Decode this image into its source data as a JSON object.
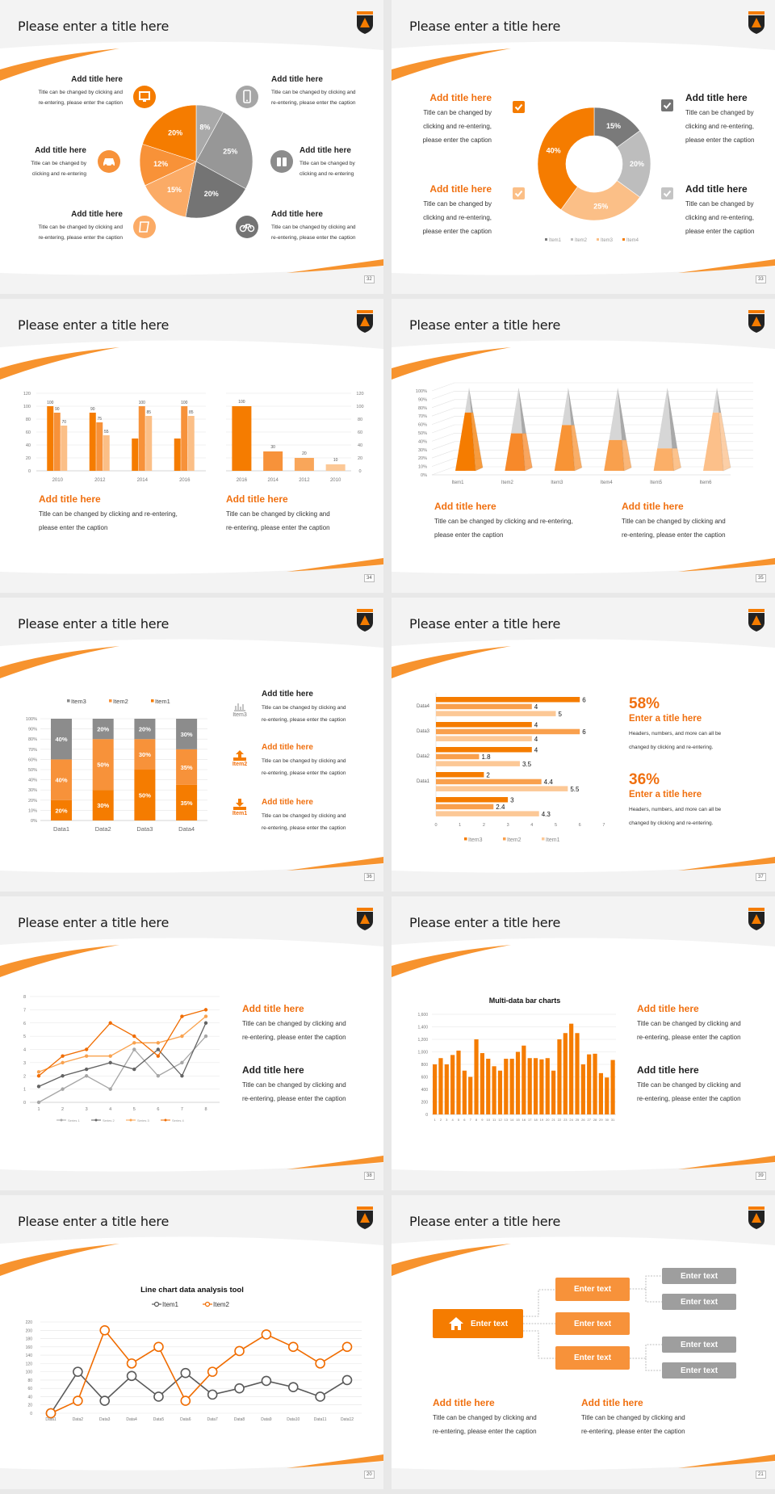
{
  "colors": {
    "accent": "#f57c00",
    "accent_mid": "#f7923a",
    "accent_light": "#fbbf87",
    "gray_dark": "#747474",
    "gray": "#a6a6a6"
  },
  "slides": [
    {
      "title": "Please enter a title here",
      "page": "32",
      "icons": [
        "monitor-icon",
        "phone-icon",
        "car-icon",
        "binoculars-icon",
        "book-icon",
        "bicycle-icon"
      ],
      "blocks": [
        {
          "title": "Add title here",
          "caption": [
            "Title can be changed by clicking and",
            "re-entering, please enter the caption"
          ]
        },
        {
          "title": "Add title here",
          "caption": [
            "Title can be changed by clicking and",
            "re-entering, please enter the caption"
          ]
        },
        {
          "title": "Add title here",
          "caption": [
            "Title can be changed by",
            "clicking and re-entering"
          ]
        },
        {
          "title": "Add title here",
          "caption": [
            "Title can be changed by",
            "clicking and re-entering"
          ]
        },
        {
          "title": "Add title here",
          "caption": [
            "Title can be changed by clicking and",
            "re-entering, please enter the caption"
          ]
        },
        {
          "title": "Add title here",
          "caption": [
            "Title can be changed by clicking and",
            "re-entering, please enter the caption"
          ]
        }
      ]
    },
    {
      "title": "Please enter a title here",
      "page": "33",
      "blocks": [
        {
          "title": "Add title here",
          "caption": [
            "Title can be changed by",
            "clicking and re-entering,",
            "please enter the caption"
          ]
        },
        {
          "title": "Add title here",
          "caption": [
            "Title can be changed by",
            "clicking and re-entering,",
            "please enter the caption"
          ]
        },
        {
          "title": "Add title here",
          "caption": [
            "Title can be changed by",
            "clicking and re-entering,",
            "please enter the caption"
          ]
        },
        {
          "title": "Add title here",
          "caption": [
            "Title can be changed by",
            "clicking and re-entering,",
            "please enter the caption"
          ]
        }
      ]
    },
    {
      "title": "Please enter a title here",
      "page": "34",
      "blocks": [
        {
          "title": "Add title here",
          "caption": [
            "Title can be changed by clicking and re-entering,",
            "please enter the caption"
          ]
        },
        {
          "title": "Add title here",
          "caption": [
            "Title can be changed by clicking and",
            "re-entering, please enter the caption"
          ]
        }
      ]
    },
    {
      "title": "Please enter a title here",
      "page": "35",
      "blocks": [
        {
          "title": "Add title here",
          "caption": [
            "Title can be changed by clicking and re-entering,",
            "please enter the caption"
          ]
        },
        {
          "title": "Add title here",
          "caption": [
            "Title can be changed by clicking and",
            "re-entering, please enter the caption"
          ]
        }
      ]
    },
    {
      "title": "Please enter a title here",
      "page": "36",
      "icon_labels": [
        "Item3",
        "Item2",
        "Item1"
      ],
      "blocks": [
        {
          "title": "Add title here",
          "caption": [
            "Title can be changed by clicking and",
            "re-entering, please enter the caption"
          ]
        },
        {
          "title": "Add title here",
          "caption": [
            "Title can be changed by clicking and",
            "re-entering, please enter the caption"
          ]
        },
        {
          "title": "Add title here",
          "caption": [
            "Title can be changed by clicking and",
            "re-entering, please enter the caption"
          ]
        }
      ]
    },
    {
      "title": "Please enter a title here",
      "page": "37",
      "stats": [
        {
          "value": "58%",
          "title": "Enter a title here",
          "caption": [
            "Headers, numbers, and more can all be",
            "changed by clicking and re-entering."
          ]
        },
        {
          "value": "36%",
          "title": "Enter a title here",
          "caption": [
            "Headers, numbers, and more can all be",
            "changed by clicking and re-entering."
          ]
        }
      ]
    },
    {
      "title": "Please enter a title here",
      "page": "38",
      "blocks": [
        {
          "title": "Add title here",
          "caption": [
            "Title can be changed by clicking and",
            "re-entering, please enter the caption"
          ]
        },
        {
          "title": "Add title here",
          "caption": [
            "Title can be changed by clicking and",
            "re-entering, please enter the caption"
          ]
        }
      ]
    },
    {
      "title": "Please enter a title here",
      "page": "39",
      "blocks": [
        {
          "title": "Add title here",
          "caption": [
            "Title can be changed by clicking and",
            "re-entering, please enter the caption"
          ]
        },
        {
          "title": "Add title here",
          "caption": [
            "Title can be changed by clicking and",
            "re-entering, please enter the caption"
          ]
        }
      ]
    },
    {
      "title": "Please enter a title here",
      "page": "20"
    },
    {
      "title": "Please enter a title here",
      "page": "21",
      "tree": {
        "root": "Enter text",
        "mid": [
          "Enter text",
          "Enter text",
          "Enter text"
        ],
        "leaves": [
          "Enter text",
          "Enter text",
          "Enter text",
          "Enter text"
        ]
      },
      "blocks": [
        {
          "title": "Add title here",
          "caption": [
            "Title can be changed by clicking and",
            "re-entering, please enter the caption"
          ]
        },
        {
          "title": "Add title here",
          "caption": [
            "Title can be changed by clicking and",
            "re-entering, please enter the caption"
          ]
        }
      ]
    }
  ],
  "chart_data": [
    {
      "type": "pie",
      "values": [
        8,
        25,
        20,
        15,
        12,
        20
      ],
      "labels": [
        "8%",
        "25%",
        "20%",
        "15%",
        "12%",
        "20%"
      ],
      "colors": [
        "#a9a9a9",
        "#979797",
        "#747474",
        "#fbab66",
        "#f89238",
        "#f57c00"
      ]
    },
    {
      "type": "pie",
      "donut": true,
      "categories": [
        "Item1",
        "Item2",
        "Item3",
        "Item4"
      ],
      "values": [
        15,
        20,
        25,
        40
      ],
      "labels": [
        "15%",
        "20%",
        "25%",
        "40%"
      ],
      "colors": [
        "#7a7a7a",
        "#bdbdbd",
        "#fbbf87",
        "#f57c00"
      ],
      "legend": "bottom"
    },
    {
      "type": "bar",
      "categories": [
        "2010",
        "2012",
        "2014",
        "2016"
      ],
      "ylim": [
        0,
        120
      ],
      "yticks": [
        "0",
        "20",
        "40",
        "60",
        "80",
        "100",
        "120"
      ],
      "series": [
        {
          "values": [
            100,
            90,
            50,
            50
          ],
          "labels": [
            "100",
            "90",
            "",
            ""
          ],
          "color": "#f57c00"
        },
        {
          "values": [
            90,
            75,
            100,
            100
          ],
          "labels": [
            "90",
            "75",
            "100",
            "100"
          ],
          "color": "#f7923a"
        },
        {
          "values": [
            70,
            55,
            85,
            85
          ],
          "labels": [
            "70",
            "55",
            "85",
            "85"
          ],
          "color": "#fbbf87"
        }
      ]
    },
    {
      "type": "bar",
      "categories": [
        "2016",
        "2014",
        "2012",
        "2010"
      ],
      "values": [
        100,
        30,
        20,
        10
      ],
      "labels": [
        "100",
        "30",
        "20",
        "10"
      ],
      "ylim": [
        0,
        120
      ],
      "yticks": [
        "0",
        "20",
        "40",
        "60",
        "80",
        "100",
        "120"
      ],
      "colors": [
        "#f57c00",
        "#f7923a",
        "#f9a65a",
        "#fcc896"
      ]
    },
    {
      "type": "bar",
      "style": "3d-pyramid",
      "categories": [
        "Item1",
        "Item2",
        "Item3",
        "Item4",
        "Item5",
        "Item6"
      ],
      "values": [
        70,
        45,
        55,
        37,
        27,
        70
      ],
      "ylim": [
        0,
        100
      ],
      "yticks": [
        "0%",
        "10%",
        "20%",
        "30%",
        "40%",
        "50%",
        "60%",
        "70%",
        "80%",
        "90%",
        "100%"
      ],
      "colors": [
        "#f57c00",
        "#f7892a",
        "#f89436",
        "#f9a04d",
        "#fbaf68",
        "#fcc08a"
      ]
    },
    {
      "type": "bar",
      "stacked": true,
      "categories": [
        "Data1",
        "Data2",
        "Data3",
        "Data4"
      ],
      "ylim": [
        0,
        100
      ],
      "yticks": [
        "0%",
        "10%",
        "20%",
        "30%",
        "40%",
        "50%",
        "60%",
        "70%",
        "80%",
        "90%",
        "100%"
      ],
      "legend": "top",
      "series": [
        {
          "name": "Item1",
          "values": [
            20,
            30,
            50,
            35
          ],
          "labels": [
            "20%",
            "30%",
            "50%",
            "35%"
          ],
          "color": "#f57c00"
        },
        {
          "name": "Item2",
          "values": [
            40,
            50,
            30,
            35
          ],
          "labels": [
            "40%",
            "50%",
            "30%",
            "35%"
          ],
          "color": "#f7923a"
        },
        {
          "name": "Item3",
          "values": [
            40,
            20,
            20,
            30
          ],
          "labels": [
            "40%",
            "20%",
            "20%",
            "30%"
          ],
          "color": "#8c8c8c"
        }
      ]
    },
    {
      "type": "bar",
      "orientation": "horizontal",
      "categories": [
        "Data4",
        "Data3",
        "Data2",
        "Data1",
        ""
      ],
      "xlim": [
        0,
        7
      ],
      "xticks": [
        "0",
        "1",
        "2",
        "3",
        "4",
        "5",
        "6",
        "7"
      ],
      "legend": "bottom",
      "series": [
        {
          "name": "Item3",
          "values": [
            6,
            4,
            4,
            2,
            3
          ],
          "labels": [
            "6",
            "4",
            "4",
            "2",
            "3"
          ],
          "color": "#f57c00"
        },
        {
          "name": "Item2",
          "values": [
            4,
            6,
            1.8,
            4.4,
            2.4
          ],
          "labels": [
            "4",
            "6",
            "1.8",
            "4.4",
            "2.4"
          ],
          "color": "#f9a04d"
        },
        {
          "name": "Item1",
          "values": [
            5,
            4,
            3.5,
            5.5,
            4.3
          ],
          "labels": [
            "5",
            "4",
            "3.5",
            "5.5",
            "4.3"
          ],
          "color": "#fcc896"
        }
      ]
    },
    {
      "type": "line",
      "x": [
        "1",
        "2",
        "3",
        "4",
        "5",
        "6",
        "7",
        "8"
      ],
      "ylim": [
        0,
        8
      ],
      "yticks": [
        "0",
        "1",
        "2",
        "3",
        "4",
        "5",
        "6",
        "7",
        "8"
      ],
      "legend": "bottom",
      "series": [
        {
          "name": "Series 1",
          "values": [
            0,
            1,
            2,
            1,
            4,
            2,
            3,
            5
          ],
          "color": "#a6a6a6"
        },
        {
          "name": "Series 2",
          "values": [
            1.2,
            2,
            2.5,
            3,
            2.5,
            4,
            2,
            6
          ],
          "color": "#636363"
        },
        {
          "name": "Series 3",
          "values": [
            2.3,
            3,
            3.5,
            3.5,
            4.5,
            4.5,
            5,
            6.5
          ],
          "color": "#f9a24e"
        },
        {
          "name": "Series 4",
          "values": [
            2,
            3.5,
            4,
            6,
            5,
            3.5,
            6.5,
            7
          ],
          "color": "#f06c00"
        }
      ]
    },
    {
      "type": "bar",
      "title": "Multi-data bar charts",
      "categories": [
        "1",
        "2",
        "3",
        "4",
        "5",
        "6",
        "7",
        "8",
        "9",
        "10",
        "11",
        "12",
        "13",
        "14",
        "15",
        "16",
        "17",
        "18",
        "19",
        "20",
        "21",
        "22",
        "23",
        "24",
        "25",
        "26",
        "27",
        "28",
        "29",
        "30",
        "31"
      ],
      "values": [
        800,
        900,
        800,
        950,
        1020,
        700,
        600,
        1200,
        980,
        890,
        770,
        700,
        890,
        890,
        1000,
        1100,
        900,
        900,
        880,
        900,
        700,
        1200,
        1300,
        1450,
        1300,
        800,
        960,
        970,
        660,
        590,
        870
      ],
      "ylim": [
        0,
        1600
      ],
      "yticks": [
        "0",
        "200",
        "400",
        "600",
        "800",
        "1,000",
        "1,200",
        "1,400",
        "1,600"
      ],
      "color": "#f57c00"
    },
    {
      "type": "line",
      "title": "Line chart data analysis tool",
      "x": [
        "Data1",
        "Data2",
        "Data3",
        "Data4",
        "Data5",
        "Data6",
        "Data7",
        "Data8",
        "Data9",
        "Data10",
        "Data11",
        "Data12"
      ],
      "ylim": [
        0,
        220
      ],
      "yticks": [
        "0",
        "20",
        "40",
        "60",
        "80",
        "100",
        "120",
        "140",
        "160",
        "180",
        "200",
        "220"
      ],
      "legend": "top",
      "series": [
        {
          "name": "Item1",
          "values": [
            0,
            100,
            30,
            90,
            40,
            97,
            45,
            60,
            78,
            63,
            40,
            80
          ],
          "color": "#595959"
        },
        {
          "name": "Item2",
          "values": [
            0,
            30,
            200,
            120,
            160,
            30,
            100,
            150,
            190,
            160,
            120,
            160
          ],
          "color": "#f06c00"
        }
      ]
    }
  ]
}
